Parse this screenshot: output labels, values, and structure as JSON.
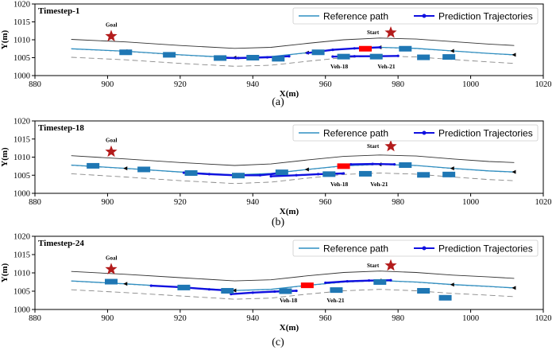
{
  "colors": {
    "reference_path": "#2f8fc2",
    "prediction": "#1010e0",
    "vehicle": "#1f77b4",
    "ego_vehicle": "#ff0000",
    "star": "#b31b1b",
    "road_edge": "#333333",
    "lane_dash": "#888888"
  },
  "chart_data": [
    {
      "type": "scatter",
      "title": "Timestep-1",
      "caption": "(a)",
      "xlabel": "X(m)",
      "ylabel": "Y(m)",
      "xlim": [
        880,
        1020
      ],
      "ylim": [
        1000,
        1020
      ],
      "xticks": [
        "880",
        "900",
        "920",
        "940",
        "960",
        "980",
        "1000",
        "1020"
      ],
      "yticks": [
        "1000",
        "1005",
        "1010",
        "1015",
        "1020"
      ],
      "legend": [
        "Reference path",
        "Prediction Trajectories"
      ],
      "legend_position": "top-right",
      "goal": {
        "label": "Goal",
        "x": 901,
        "y": 1011
      },
      "start": {
        "label": "Start",
        "x": 978,
        "y": 1012
      },
      "vehicle_labels": [
        {
          "text": "Veh-18",
          "x": 964,
          "y": 1002
        },
        {
          "text": "Veh-21",
          "x": 977,
          "y": 1002
        }
      ],
      "ego": [
        {
          "x": 971,
          "y": 1007.5
        }
      ],
      "vehicles": [
        {
          "x": 905,
          "y": 1006.5
        },
        {
          "x": 917,
          "y": 1005.8
        },
        {
          "x": 931,
          "y": 1004.9
        },
        {
          "x": 940,
          "y": 1005.0
        },
        {
          "x": 947,
          "y": 1004.7
        },
        {
          "x": 958,
          "y": 1006.5
        },
        {
          "x": 965,
          "y": 1005.3
        },
        {
          "x": 974,
          "y": 1005.3
        },
        {
          "x": 982,
          "y": 1007.5
        },
        {
          "x": 987,
          "y": 1005.1
        },
        {
          "x": 994,
          "y": 1005.2
        }
      ],
      "reference_path": [
        {
          "x": 890,
          "y": 1007.5
        },
        {
          "x": 905,
          "y": 1006.8
        },
        {
          "x": 920,
          "y": 1005.8
        },
        {
          "x": 935,
          "y": 1005.0
        },
        {
          "x": 945,
          "y": 1005.3
        },
        {
          "x": 955,
          "y": 1006.4
        },
        {
          "x": 965,
          "y": 1007.4
        },
        {
          "x": 975,
          "y": 1007.9
        },
        {
          "x": 985,
          "y": 1007.6
        },
        {
          "x": 995,
          "y": 1006.9
        },
        {
          "x": 1005,
          "y": 1006.2
        },
        {
          "x": 1012,
          "y": 1005.8
        }
      ],
      "predictions": [
        [
          {
            "x": 931,
            "y": 1005.0
          },
          {
            "x": 936,
            "y": 1004.9
          },
          {
            "x": 940,
            "y": 1005.0
          },
          {
            "x": 944,
            "y": 1005.1
          },
          {
            "x": 950,
            "y": 1005.4
          }
        ],
        [
          {
            "x": 955,
            "y": 1006.3
          },
          {
            "x": 962,
            "y": 1007.2
          },
          {
            "x": 968,
            "y": 1007.6
          },
          {
            "x": 975,
            "y": 1007.9
          }
        ],
        [
          {
            "x": 962,
            "y": 1005.3
          },
          {
            "x": 968,
            "y": 1005.4
          },
          {
            "x": 974,
            "y": 1005.4
          },
          {
            "x": 980,
            "y": 1005.5
          }
        ]
      ]
    },
    {
      "type": "scatter",
      "title": "Timestep-18",
      "caption": "(b)",
      "xlabel": "X(m)",
      "ylabel": "Y(m)",
      "xlim": [
        880,
        1020
      ],
      "ylim": [
        1000,
        1020
      ],
      "xticks": [
        "880",
        "900",
        "920",
        "940",
        "960",
        "980",
        "1000",
        "1020"
      ],
      "yticks": [
        "1000",
        "1005",
        "1010",
        "1015",
        "1020"
      ],
      "legend": [
        "Reference path",
        "Prediction Trajectories"
      ],
      "legend_position": "top-right",
      "goal": {
        "label": "Goal",
        "x": 901,
        "y": 1011.5
      },
      "start": {
        "label": "Start",
        "x": 978,
        "y": 1013
      },
      "vehicle_labels": [
        {
          "text": "Veh-18",
          "x": 964,
          "y": 1002
        },
        {
          "text": "Veh-21",
          "x": 975,
          "y": 1002
        }
      ],
      "ego": [
        {
          "x": 965,
          "y": 1007.5
        }
      ],
      "vehicles": [
        {
          "x": 896,
          "y": 1007.6
        },
        {
          "x": 910,
          "y": 1006.6
        },
        {
          "x": 923,
          "y": 1005.6
        },
        {
          "x": 936,
          "y": 1004.9
        },
        {
          "x": 948,
          "y": 1005.8
        },
        {
          "x": 961,
          "y": 1005.3
        },
        {
          "x": 971,
          "y": 1005.4
        },
        {
          "x": 982,
          "y": 1007.8
        },
        {
          "x": 987,
          "y": 1005.1
        },
        {
          "x": 994,
          "y": 1005.2
        }
      ],
      "reference_path": [
        {
          "x": 890,
          "y": 1007.8
        },
        {
          "x": 905,
          "y": 1006.9
        },
        {
          "x": 920,
          "y": 1005.9
        },
        {
          "x": 935,
          "y": 1005.1
        },
        {
          "x": 945,
          "y": 1005.5
        },
        {
          "x": 955,
          "y": 1006.6
        },
        {
          "x": 965,
          "y": 1007.6
        },
        {
          "x": 975,
          "y": 1008.0
        },
        {
          "x": 985,
          "y": 1007.7
        },
        {
          "x": 995,
          "y": 1006.9
        },
        {
          "x": 1005,
          "y": 1006.2
        },
        {
          "x": 1012,
          "y": 1005.9
        }
      ],
      "predictions": [
        [
          {
            "x": 921,
            "y": 1005.7
          },
          {
            "x": 928,
            "y": 1005.3
          },
          {
            "x": 935,
            "y": 1005.0
          },
          {
            "x": 942,
            "y": 1005.0
          },
          {
            "x": 948,
            "y": 1005.6
          }
        ],
        [
          {
            "x": 945,
            "y": 1004.7
          },
          {
            "x": 952,
            "y": 1005.0
          },
          {
            "x": 958,
            "y": 1005.3
          },
          {
            "x": 965,
            "y": 1005.5
          }
        ],
        [
          {
            "x": 967,
            "y": 1008.0
          },
          {
            "x": 973,
            "y": 1008.1
          },
          {
            "x": 979,
            "y": 1008.0
          }
        ]
      ]
    },
    {
      "type": "scatter",
      "title": "Timestep-24",
      "caption": "(c)",
      "xlabel": "X(m)",
      "ylabel": "Y(m)",
      "xlim": [
        880,
        1020
      ],
      "ylim": [
        1000,
        1020
      ],
      "xticks": [
        "880",
        "900",
        "920",
        "940",
        "960",
        "980",
        "1000",
        "1020"
      ],
      "yticks": [
        "1000",
        "1005",
        "1010",
        "1015",
        "1020"
      ],
      "legend": [
        "Reference path",
        "Prediction Trajectories"
      ],
      "legend_position": "top-right",
      "goal": {
        "label": "Goal",
        "x": 901,
        "y": 1011
      },
      "start": {
        "label": "Start",
        "x": 978,
        "y": 1012
      },
      "vehicle_labels": [
        {
          "text": "Veh-18",
          "x": 950,
          "y": 1002
        },
        {
          "text": "Veh-21",
          "x": 963,
          "y": 1002
        }
      ],
      "ego": [
        {
          "x": 955,
          "y": 1006.6
        }
      ],
      "vehicles": [
        {
          "x": 901,
          "y": 1007.6
        },
        {
          "x": 921,
          "y": 1006.0
        },
        {
          "x": 933,
          "y": 1005.1
        },
        {
          "x": 949,
          "y": 1005.0
        },
        {
          "x": 963,
          "y": 1005.3
        },
        {
          "x": 975,
          "y": 1007.5
        },
        {
          "x": 987,
          "y": 1005.1
        },
        {
          "x": 993,
          "y": 1003.2
        }
      ],
      "reference_path": [
        {
          "x": 890,
          "y": 1007.8
        },
        {
          "x": 905,
          "y": 1007.0
        },
        {
          "x": 920,
          "y": 1006.1
        },
        {
          "x": 935,
          "y": 1005.2
        },
        {
          "x": 945,
          "y": 1005.5
        },
        {
          "x": 955,
          "y": 1006.6
        },
        {
          "x": 965,
          "y": 1007.5
        },
        {
          "x": 975,
          "y": 1007.9
        },
        {
          "x": 985,
          "y": 1007.5
        },
        {
          "x": 995,
          "y": 1006.8
        },
        {
          "x": 1005,
          "y": 1006.3
        },
        {
          "x": 1012,
          "y": 1005.9
        }
      ],
      "predictions": [
        [
          {
            "x": 912,
            "y": 1006.5
          },
          {
            "x": 920,
            "y": 1006.1
          },
          {
            "x": 928,
            "y": 1005.5
          },
          {
            "x": 933,
            "y": 1005.2
          }
        ],
        [
          {
            "x": 934,
            "y": 1004.2
          },
          {
            "x": 940,
            "y": 1004.6
          },
          {
            "x": 946,
            "y": 1004.9
          },
          {
            "x": 952,
            "y": 1005.1
          }
        ],
        [
          {
            "x": 960,
            "y": 1007.3
          },
          {
            "x": 966,
            "y": 1007.7
          },
          {
            "x": 972,
            "y": 1007.9
          },
          {
            "x": 978,
            "y": 1008.0
          }
        ]
      ]
    }
  ]
}
